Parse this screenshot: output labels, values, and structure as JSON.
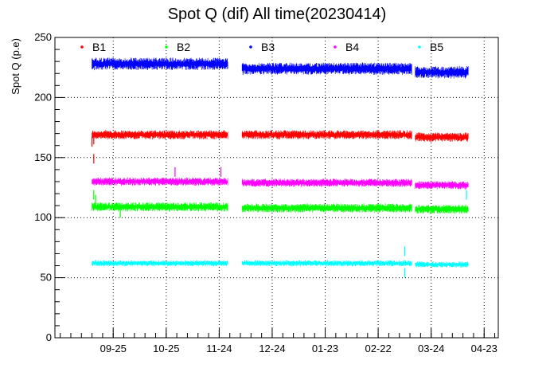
{
  "chart_data": {
    "type": "scatter",
    "title": "Spot Q (dif) All time(20230414)",
    "xlabel": "",
    "ylabel": "Spot Q (p.e)",
    "ylim": [
      0,
      250
    ],
    "yticks": [
      0,
      50,
      100,
      150,
      200,
      250
    ],
    "xticks": [
      "09-25",
      "10-25",
      "11-24",
      "12-24",
      "01-23",
      "02-22",
      "03-24",
      "04-23"
    ],
    "xtick_dates": [
      "2022-09-25",
      "2022-10-25",
      "2022-11-24",
      "2022-12-24",
      "2023-01-23",
      "2023-02-22",
      "2023-03-24",
      "2023-04-23"
    ],
    "xlim": [
      "2022-08-23",
      "2023-05-01"
    ],
    "grid": true,
    "legend_position": "top",
    "series": [
      {
        "name": "B1",
        "color": "#ff0000",
        "noise": 2.8,
        "segments": [
          {
            "start": "2022-09-13",
            "end": "2022-11-29",
            "level": 169
          },
          {
            "start": "2022-12-07",
            "end": "2023-03-13",
            "level": 169
          },
          {
            "start": "2023-03-15",
            "end": "2023-04-14",
            "level": 167
          }
        ],
        "extra_points": [
          {
            "x": "2022-09-14",
            "y": 149
          },
          {
            "x": "2022-09-14",
            "y": 165
          },
          {
            "x": "2022-09-13",
            "y": 163
          }
        ]
      },
      {
        "name": "B2",
        "color": "#00ff00",
        "noise": 2.8,
        "segments": [
          {
            "start": "2022-09-13",
            "end": "2022-11-29",
            "level": 109
          },
          {
            "start": "2022-12-07",
            "end": "2023-03-13",
            "level": 108
          },
          {
            "start": "2023-03-15",
            "end": "2023-04-14",
            "level": 107
          }
        ],
        "extra_points": [
          {
            "x": "2022-09-14",
            "y": 119
          },
          {
            "x": "2022-09-15",
            "y": 115
          },
          {
            "x": "2022-09-29",
            "y": 104
          }
        ]
      },
      {
        "name": "B3",
        "color": "#0000ff",
        "noise": 3.8,
        "segments": [
          {
            "start": "2022-09-13",
            "end": "2022-11-29",
            "level": 228
          },
          {
            "start": "2022-12-07",
            "end": "2023-03-13",
            "level": 224
          },
          {
            "start": "2023-03-15",
            "end": "2023-04-14",
            "level": 221
          }
        ],
        "extra_points": []
      },
      {
        "name": "B4",
        "color": "#ff00ff",
        "noise": 2.5,
        "segments": [
          {
            "start": "2022-09-13",
            "end": "2022-11-29",
            "level": 130
          },
          {
            "start": "2022-12-07",
            "end": "2023-03-13",
            "level": 129
          },
          {
            "start": "2023-03-15",
            "end": "2023-04-14",
            "level": 127
          }
        ],
        "extra_points": [
          {
            "x": "2022-10-30",
            "y": 138
          },
          {
            "x": "2022-11-25",
            "y": 138
          }
        ]
      },
      {
        "name": "B5",
        "color": "#00ffff",
        "noise": 1.8,
        "segments": [
          {
            "start": "2022-09-13",
            "end": "2022-11-29",
            "level": 62
          },
          {
            "start": "2022-12-07",
            "end": "2023-03-13",
            "level": 62
          },
          {
            "start": "2023-03-15",
            "end": "2023-04-14",
            "level": 61
          }
        ],
        "extra_points": [
          {
            "x": "2023-04-13",
            "y": 119
          },
          {
            "x": "2023-03-09",
            "y": 72
          },
          {
            "x": "2023-03-09",
            "y": 54
          }
        ]
      }
    ]
  }
}
